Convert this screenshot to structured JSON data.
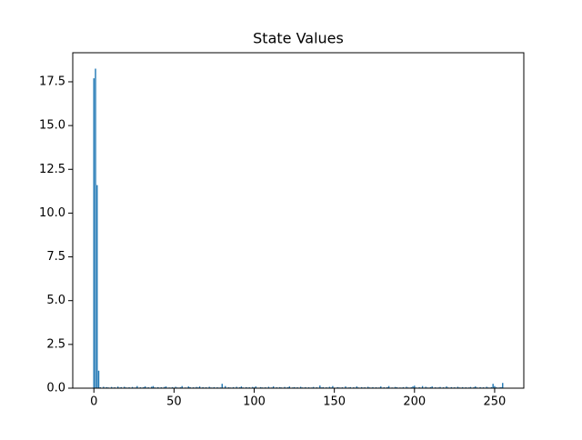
{
  "chart_data": {
    "type": "bar",
    "title": "State Values",
    "color": "#1f77b4",
    "x": [
      0,
      1,
      2,
      3,
      4,
      5,
      6,
      7,
      8,
      9,
      10,
      11,
      12,
      13,
      14,
      15,
      16,
      17,
      18,
      19,
      20,
      21,
      22,
      23,
      24,
      25,
      26,
      27,
      28,
      29,
      30,
      31,
      32,
      33,
      34,
      35,
      36,
      37,
      38,
      39,
      40,
      41,
      42,
      43,
      44,
      45,
      46,
      47,
      48,
      49,
      50,
      51,
      52,
      53,
      54,
      55,
      56,
      57,
      58,
      59,
      60,
      61,
      62,
      63,
      64,
      65,
      66,
      67,
      68,
      69,
      70,
      71,
      72,
      73,
      74,
      75,
      76,
      77,
      78,
      79,
      80,
      81,
      82,
      83,
      84,
      85,
      86,
      87,
      88,
      89,
      90,
      91,
      92,
      93,
      94,
      95,
      96,
      97,
      98,
      99,
      100,
      101,
      102,
      103,
      104,
      105,
      106,
      107,
      108,
      109,
      110,
      111,
      112,
      113,
      114,
      115,
      116,
      117,
      118,
      119,
      120,
      121,
      122,
      123,
      124,
      125,
      126,
      127,
      128,
      129,
      130,
      131,
      132,
      133,
      134,
      135,
      136,
      137,
      138,
      139,
      140,
      141,
      142,
      143,
      144,
      145,
      146,
      147,
      148,
      149,
      150,
      151,
      152,
      153,
      154,
      155,
      156,
      157,
      158,
      159,
      160,
      161,
      162,
      163,
      164,
      165,
      166,
      167,
      168,
      169,
      170,
      171,
      172,
      173,
      174,
      175,
      176,
      177,
      178,
      179,
      180,
      181,
      182,
      183,
      184,
      185,
      186,
      187,
      188,
      189,
      190,
      191,
      192,
      193,
      194,
      195,
      196,
      197,
      198,
      199,
      200,
      201,
      202,
      203,
      204,
      205,
      206,
      207,
      208,
      209,
      210,
      211,
      212,
      213,
      214,
      215,
      216,
      217,
      218,
      219,
      220,
      221,
      222,
      223,
      224,
      225,
      226,
      227,
      228,
      229,
      230,
      231,
      232,
      233,
      234,
      235,
      236,
      237,
      238,
      239,
      240,
      241,
      242,
      243,
      244,
      245,
      246,
      247,
      248,
      249,
      250,
      251,
      252,
      253,
      254,
      255
    ],
    "values": [
      17.7,
      18.25,
      11.6,
      1.0,
      0.05,
      0.02,
      0.08,
      0.03,
      0.06,
      0.04,
      0.02,
      0.07,
      0.03,
      0.05,
      0.02,
      0.09,
      0.03,
      0.06,
      0.02,
      0.08,
      0.04,
      0.03,
      0.05,
      0.02,
      0.07,
      0.03,
      0.04,
      0.12,
      0.02,
      0.05,
      0.03,
      0.06,
      0.1,
      0.03,
      0.05,
      0.02,
      0.08,
      0.12,
      0.04,
      0.03,
      0.06,
      0.02,
      0.05,
      0.03,
      0.07,
      0.1,
      0.02,
      0.04,
      0.03,
      0.06,
      0.02,
      0.08,
      0.04,
      0.03,
      0.05,
      0.12,
      0.02,
      0.04,
      0.03,
      0.1,
      0.06,
      0.02,
      0.05,
      0.03,
      0.07,
      0.04,
      0.1,
      0.02,
      0.06,
      0.03,
      0.05,
      0.02,
      0.08,
      0.04,
      0.03,
      0.06,
      0.02,
      0.05,
      0.03,
      0.04,
      0.25,
      0.03,
      0.12,
      0.02,
      0.05,
      0.04,
      0.03,
      0.06,
      0.02,
      0.08,
      0.03,
      0.05,
      0.1,
      0.04,
      0.02,
      0.06,
      0.03,
      0.05,
      0.02,
      0.07,
      0.04,
      0.1,
      0.03,
      0.02,
      0.06,
      0.04,
      0.03,
      0.05,
      0.02,
      0.08,
      0.03,
      0.04,
      0.1,
      0.02,
      0.05,
      0.03,
      0.06,
      0.04,
      0.02,
      0.07,
      0.03,
      0.05,
      0.1,
      0.02,
      0.04,
      0.06,
      0.03,
      0.05,
      0.02,
      0.08,
      0.04,
      0.03,
      0.06,
      0.02,
      0.05,
      0.03,
      0.04,
      0.07,
      0.02,
      0.05,
      0.03,
      0.15,
      0.04,
      0.06,
      0.02,
      0.05,
      0.03,
      0.08,
      0.04,
      0.12,
      0.03,
      0.02,
      0.06,
      0.04,
      0.03,
      0.05,
      0.02,
      0.1,
      0.03,
      0.04,
      0.06,
      0.02,
      0.05,
      0.03,
      0.1,
      0.04,
      0.02,
      0.06,
      0.03,
      0.05,
      0.02,
      0.08,
      0.04,
      0.03,
      0.06,
      0.02,
      0.05,
      0.03,
      0.04,
      0.1,
      0.02,
      0.05,
      0.03,
      0.06,
      0.12,
      0.02,
      0.04,
      0.03,
      0.07,
      0.05,
      0.02,
      0.04,
      0.03,
      0.06,
      0.02,
      0.08,
      0.04,
      0.03,
      0.05,
      0.1,
      0.14,
      0.04,
      0.02,
      0.06,
      0.03,
      0.12,
      0.02,
      0.08,
      0.04,
      0.03,
      0.06,
      0.1,
      0.02,
      0.05,
      0.03,
      0.04,
      0.07,
      0.02,
      0.05,
      0.03,
      0.1,
      0.04,
      0.02,
      0.06,
      0.03,
      0.05,
      0.02,
      0.08,
      0.04,
      0.03,
      0.06,
      0.02,
      0.05,
      0.03,
      0.04,
      0.07,
      0.02,
      0.05,
      0.1,
      0.04,
      0.02,
      0.06,
      0.03,
      0.05,
      0.02,
      0.08,
      0.04,
      0.03,
      0.06,
      0.25,
      0.12,
      0.05,
      0.03,
      0.04,
      0.06,
      0.3
    ],
    "xlim": [
      -13.19,
      268.19
    ],
    "xticks": [
      0,
      50,
      100,
      150,
      200,
      250
    ],
    "ylim": [
      0,
      19.16
    ],
    "yticks": [
      {
        "value": 0,
        "label": "0.0"
      },
      2.5,
      {
        "value": 5,
        "label": "5.0"
      },
      7.5,
      {
        "value": 10,
        "label": "10.0"
      },
      12.5,
      {
        "value": 15,
        "label": "15.0"
      },
      17.5
    ],
    "grid": false
  }
}
